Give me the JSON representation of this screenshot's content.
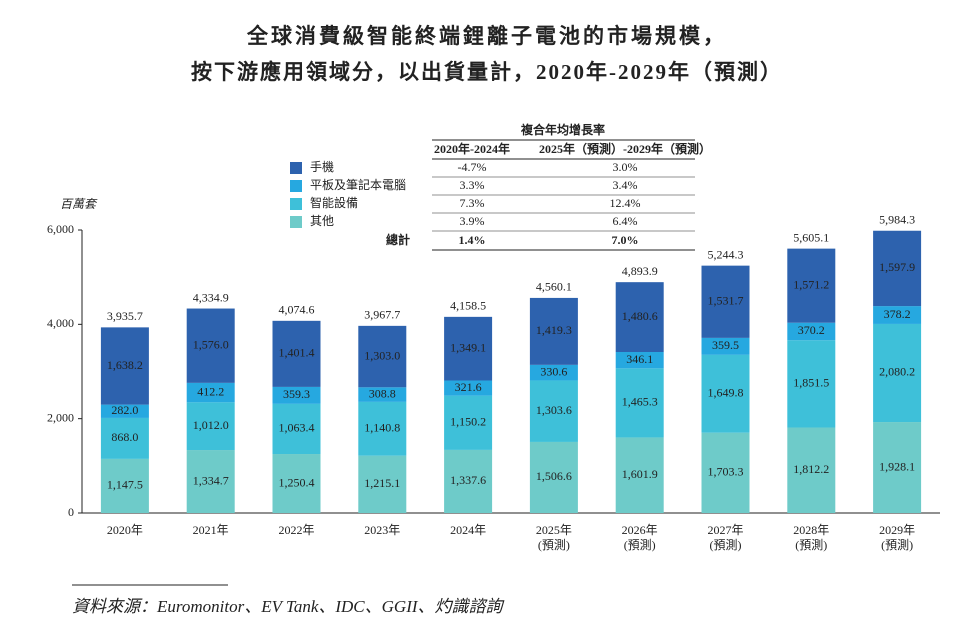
{
  "chart_data": {
    "type": "stacked_bar",
    "title": "全球消費級智能終端鋰離子電池的市場規模，",
    "subtitle": "按下游應用領域分，以出貨量計，2020年-2029年（預測）",
    "y_label": "百萬套",
    "source": "資料來源：Euromonitor、EV Tank、IDC、GGII、灼識諮詢",
    "categories": [
      "2020年",
      "2021年",
      "2022年",
      "2023年",
      "2024年",
      "2025年\n(預測)",
      "2026年\n(預測)",
      "2027年\n(預測)",
      "2028年\n(預測)",
      "2029年\n(預測)"
    ],
    "ylim": [
      0,
      6000
    ],
    "yticks": [
      0,
      {
        "value": 2000,
        "label": "2,000"
      },
      {
        "value": 4000,
        "label": "4,000"
      },
      {
        "value": 6000,
        "label": "6,000"
      }
    ],
    "series": [
      {
        "name": "其他",
        "color": "#6ecbc9",
        "values": [
          1147.5,
          1334.7,
          1250.4,
          1215.1,
          1337.6,
          1506.6,
          1601.9,
          1703.3,
          1812.2,
          1928.1
        ],
        "value_labels": [
          "1,147.5",
          "1,334.7",
          "1,250.4",
          "1,215.1",
          "1,337.6",
          "1,506.6",
          "1,601.9",
          "1,703.3",
          "1,812.2",
          "1,928.1"
        ]
      },
      {
        "name": "智能設備",
        "color": "#3ec0d9",
        "values": [
          868.0,
          1012.0,
          1063.4,
          1140.8,
          1150.2,
          1303.6,
          1465.3,
          1649.8,
          1851.5,
          2080.2
        ],
        "value_labels": [
          "868.0",
          "1,012.0",
          "1,063.4",
          "1,140.8",
          "1,150.2",
          "1,303.6",
          "1,465.3",
          "1,649.8",
          "1,851.5",
          "2,080.2"
        ]
      },
      {
        "name": "平板及筆記本電腦",
        "color": "#26a8e0",
        "values": [
          282.0,
          412.2,
          359.3,
          308.8,
          321.6,
          330.6,
          346.1,
          359.5,
          370.2,
          378.2
        ],
        "value_labels": [
          "282.0",
          "412.2",
          "359.3",
          "308.8",
          "321.6",
          "330.6",
          "346.1",
          "359.5",
          "370.2",
          "378.2"
        ]
      },
      {
        "name": "手機",
        "color": "#2d62ae",
        "values": [
          1638.2,
          1576.0,
          1401.4,
          1303.0,
          1349.1,
          1419.3,
          1480.6,
          1531.7,
          1571.2,
          1597.9
        ],
        "value_labels": [
          "1,638.2",
          "1,576.0",
          "1,401.4",
          "1,303.0",
          "1,349.1",
          "1,419.3",
          "1,480.6",
          "1,531.7",
          "1,571.2",
          "1,597.9"
        ]
      }
    ],
    "totals": [
      3935.7,
      4334.9,
      4074.6,
      3967.7,
      4158.5,
      4560.1,
      4893.9,
      5244.3,
      5605.1,
      5984.3
    ],
    "total_labels": [
      "3,935.7",
      "4,334.9",
      "4,074.6",
      "3,967.7",
      "4,158.5",
      "4,560.1",
      "4,893.9",
      "5,244.3",
      "5,605.1",
      "5,984.3"
    ],
    "cagr_table": {
      "title": "複合年均增長率",
      "columns": [
        "2020年-2024年",
        "2025年（預測）-2029年（預測）"
      ],
      "rows": [
        [
          "-4.7%",
          "3.0%"
        ],
        [
          "3.3%",
          "3.4%"
        ],
        [
          "7.3%",
          "12.4%"
        ],
        [
          "3.9%",
          "6.4%"
        ]
      ],
      "total_label": "總計",
      "total": [
        "1.4%",
        "7.0%"
      ]
    }
  }
}
